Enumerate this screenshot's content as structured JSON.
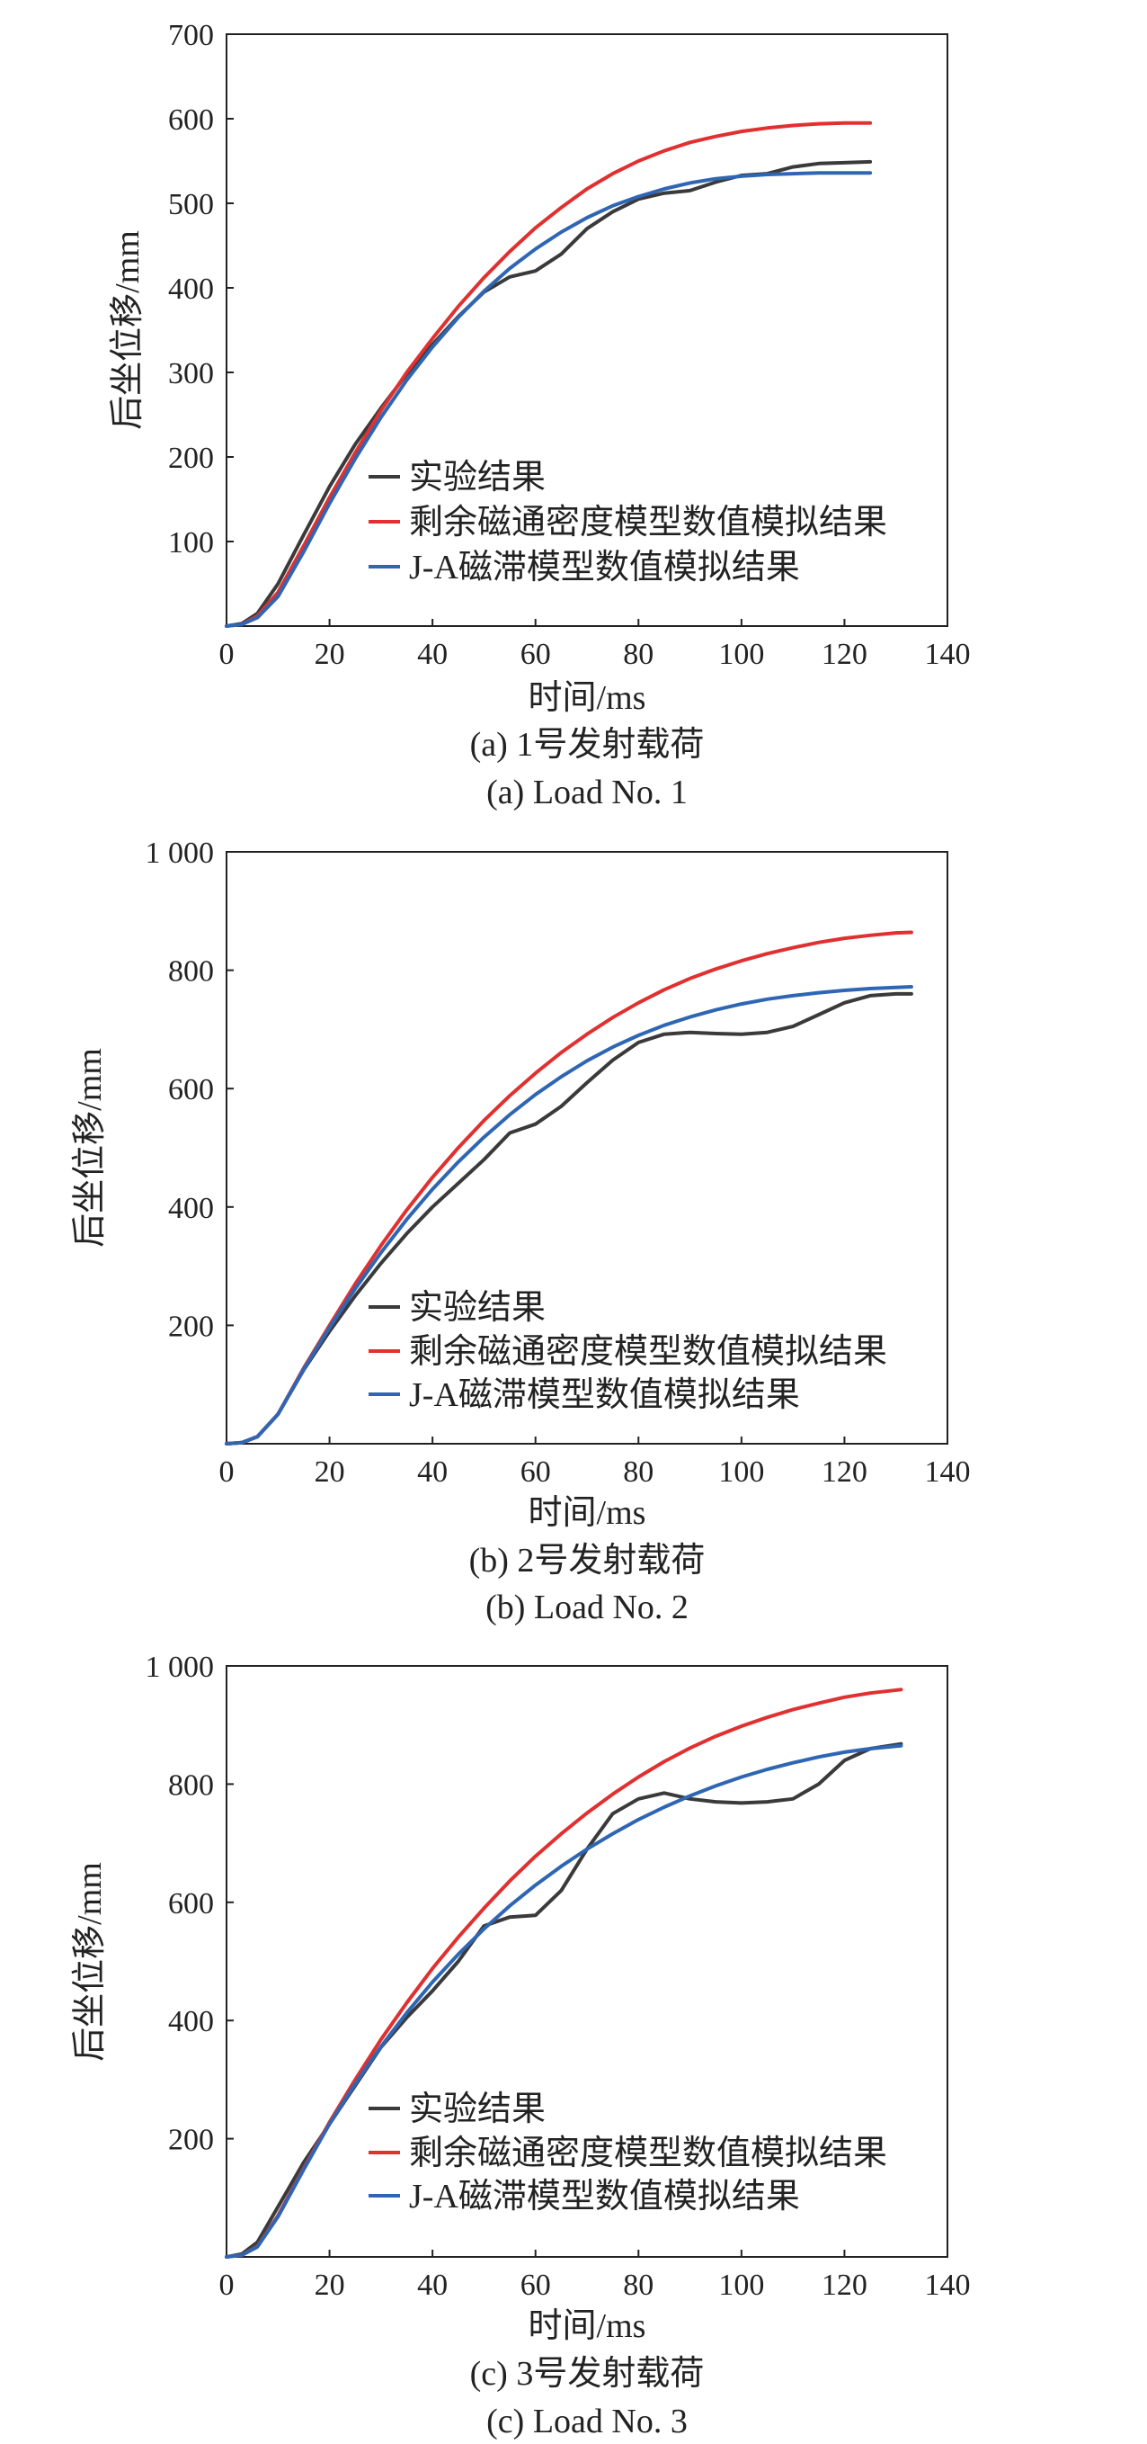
{
  "chart_data": [
    {
      "type": "line",
      "xlabel": "时间/ms",
      "ylabel": "后坐位移/mm",
      "xlim": [
        0,
        140
      ],
      "ylim": [
        0,
        700
      ],
      "xticks": [
        "0",
        "20",
        "40",
        "60",
        "80",
        "100",
        "120",
        "140"
      ],
      "yticks": [
        "100",
        "200",
        "300",
        "400",
        "500",
        "600",
        "700"
      ],
      "ytick_values": [
        100,
        200,
        300,
        400,
        500,
        600,
        700
      ],
      "caption_cn": "(a) 1号发射载荷",
      "caption_en": "(a) Load No. 1",
      "legend_position": "lower-center",
      "series": [
        {
          "name": "实验结果",
          "color": "#3a3a3a",
          "x": [
            0,
            3,
            6,
            10,
            15,
            20,
            25,
            30,
            35,
            40,
            45,
            50,
            55,
            60,
            65,
            70,
            75,
            80,
            85,
            90,
            95,
            100,
            105,
            110,
            115,
            120,
            125
          ],
          "y": [
            0,
            3,
            15,
            50,
            108,
            165,
            215,
            258,
            298,
            333,
            366,
            395,
            413,
            420,
            440,
            470,
            490,
            505,
            512,
            515,
            525,
            533,
            535,
            543,
            547,
            548,
            549
          ]
        },
        {
          "name": "剩余磁通密度模型数值模拟结果",
          "color": "#e03030",
          "x": [
            0,
            3,
            6,
            10,
            15,
            20,
            25,
            30,
            35,
            40,
            45,
            50,
            55,
            60,
            65,
            70,
            75,
            80,
            85,
            90,
            95,
            100,
            105,
            110,
            115,
            120,
            125
          ],
          "y": [
            0,
            2,
            12,
            40,
            95,
            152,
            205,
            255,
            300,
            340,
            378,
            412,
            443,
            471,
            495,
            517,
            535,
            550,
            562,
            572,
            579,
            585,
            589,
            592,
            594,
            595,
            595
          ]
        },
        {
          "name": "J-A磁滞模型数值模拟结果",
          "color": "#2f66b3",
          "x": [
            0,
            3,
            6,
            10,
            15,
            20,
            25,
            30,
            35,
            40,
            45,
            50,
            55,
            60,
            65,
            70,
            75,
            80,
            85,
            90,
            95,
            100,
            105,
            110,
            115,
            120,
            125
          ],
          "y": [
            0,
            2,
            10,
            35,
            88,
            145,
            198,
            247,
            291,
            330,
            365,
            396,
            423,
            446,
            466,
            483,
            497,
            508,
            517,
            524,
            529,
            532,
            534,
            535,
            536,
            536,
            536
          ]
        }
      ]
    },
    {
      "type": "line",
      "xlabel": "时间/ms",
      "ylabel": "后坐位移/mm",
      "xlim": [
        0,
        140
      ],
      "ylim": [
        0,
        1000
      ],
      "xticks": [
        "0",
        "20",
        "40",
        "60",
        "80",
        "100",
        "120",
        "140"
      ],
      "yticks": [
        "200",
        "400",
        "600",
        "800",
        "1 000"
      ],
      "ytick_values": [
        200,
        400,
        600,
        800,
        1000
      ],
      "caption_cn": "(b) 2号发射载荷",
      "caption_en": "(b) Load No. 2",
      "legend_position": "lower-center",
      "series": [
        {
          "name": "实验结果",
          "color": "#3a3a3a",
          "x": [
            0,
            3,
            6,
            10,
            15,
            20,
            25,
            30,
            35,
            40,
            45,
            50,
            55,
            60,
            65,
            70,
            75,
            80,
            85,
            90,
            95,
            100,
            105,
            110,
            115,
            120,
            125,
            130,
            133
          ],
          "y": [
            0,
            2,
            12,
            50,
            125,
            190,
            250,
            305,
            355,
            400,
            440,
            480,
            525,
            540,
            570,
            610,
            648,
            678,
            692,
            695,
            693,
            692,
            695,
            705,
            725,
            745,
            757,
            760,
            760
          ]
        },
        {
          "name": "剩余磁通密度模型数值模拟结果",
          "color": "#e03030",
          "x": [
            0,
            3,
            6,
            10,
            15,
            20,
            25,
            30,
            35,
            40,
            45,
            50,
            55,
            60,
            65,
            70,
            75,
            80,
            85,
            90,
            95,
            100,
            105,
            110,
            115,
            120,
            125,
            130,
            133
          ],
          "y": [
            0,
            2,
            12,
            50,
            128,
            200,
            270,
            335,
            395,
            450,
            500,
            546,
            588,
            626,
            661,
            692,
            720,
            745,
            767,
            786,
            802,
            816,
            828,
            838,
            847,
            854,
            859,
            863,
            864
          ]
        },
        {
          "name": "J-A磁滞模型数值模拟结果",
          "color": "#2f66b3",
          "x": [
            0,
            3,
            6,
            10,
            15,
            20,
            25,
            30,
            35,
            40,
            45,
            50,
            55,
            60,
            65,
            70,
            75,
            80,
            85,
            90,
            95,
            100,
            105,
            110,
            115,
            120,
            125,
            130,
            133
          ],
          "y": [
            0,
            2,
            12,
            50,
            126,
            196,
            262,
            323,
            379,
            430,
            476,
            518,
            556,
            590,
            620,
            647,
            670,
            690,
            707,
            721,
            733,
            743,
            751,
            757,
            762,
            766,
            769,
            771,
            772
          ]
        }
      ]
    },
    {
      "type": "line",
      "xlabel": "时间/ms",
      "ylabel": "后坐位移/mm",
      "xlim": [
        0,
        140
      ],
      "ylim": [
        0,
        1000
      ],
      "xticks": [
        "0",
        "20",
        "40",
        "60",
        "80",
        "100",
        "120",
        "140"
      ],
      "yticks": [
        "200",
        "400",
        "600",
        "800",
        "1 000"
      ],
      "ytick_values": [
        200,
        400,
        600,
        800,
        1000
      ],
      "caption_cn": "(c) 3号发射载荷",
      "caption_en": "(c) Load No. 3",
      "legend_position": "lower-center",
      "series": [
        {
          "name": "实验结果",
          "color": "#3a3a3a",
          "x": [
            0,
            3,
            6,
            10,
            15,
            20,
            25,
            30,
            35,
            40,
            45,
            50,
            55,
            60,
            65,
            70,
            75,
            80,
            85,
            90,
            95,
            100,
            105,
            110,
            115,
            120,
            125,
            131
          ],
          "y": [
            0,
            5,
            25,
            85,
            160,
            225,
            290,
            355,
            405,
            450,
            500,
            560,
            575,
            578,
            620,
            690,
            750,
            775,
            785,
            775,
            770,
            768,
            770,
            775,
            800,
            840,
            860,
            868
          ]
        },
        {
          "name": "剩余磁通密度模型数值模拟结果",
          "color": "#e03030",
          "x": [
            0,
            3,
            6,
            10,
            15,
            20,
            25,
            30,
            35,
            40,
            45,
            50,
            55,
            60,
            65,
            70,
            75,
            80,
            85,
            90,
            95,
            100,
            105,
            110,
            115,
            120,
            125,
            131
          ],
          "y": [
            0,
            3,
            18,
            70,
            150,
            228,
            300,
            368,
            430,
            488,
            541,
            590,
            636,
            678,
            716,
            751,
            783,
            812,
            838,
            861,
            881,
            898,
            913,
            926,
            937,
            947,
            954,
            960
          ]
        },
        {
          "name": "J-A磁滞模型数值模拟结果",
          "color": "#2f66b3",
          "x": [
            0,
            3,
            6,
            10,
            15,
            20,
            25,
            30,
            35,
            40,
            45,
            50,
            55,
            60,
            65,
            70,
            75,
            80,
            85,
            90,
            95,
            100,
            105,
            110,
            115,
            120,
            125,
            131
          ],
          "y": [
            0,
            3,
            17,
            68,
            148,
            225,
            293,
            356,
            413,
            465,
            512,
            555,
            594,
            629,
            661,
            690,
            716,
            740,
            761,
            780,
            797,
            812,
            825,
            836,
            846,
            854,
            860,
            865
          ]
        }
      ]
    }
  ]
}
